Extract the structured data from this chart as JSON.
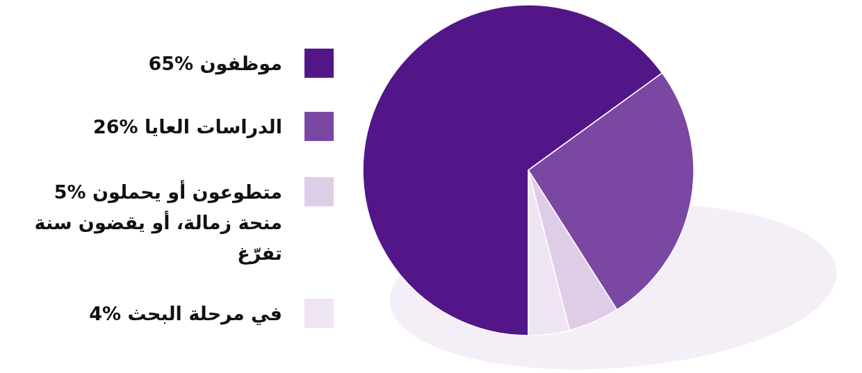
{
  "chart_data": {
    "type": "pie",
    "categories": [
      "65% موظفون",
      "26% الدراسات العايا",
      "5% متطوعون أو يحملون منحة زمالة، أو يقضون سنة تفرّغ",
      "4% في مرحلة البحث"
    ],
    "values": [
      65,
      26,
      5,
      4
    ],
    "colors": [
      "#531689",
      "#7a47a3",
      "#dfcde8",
      "#efe4f3"
    ],
    "legend": "left"
  }
}
